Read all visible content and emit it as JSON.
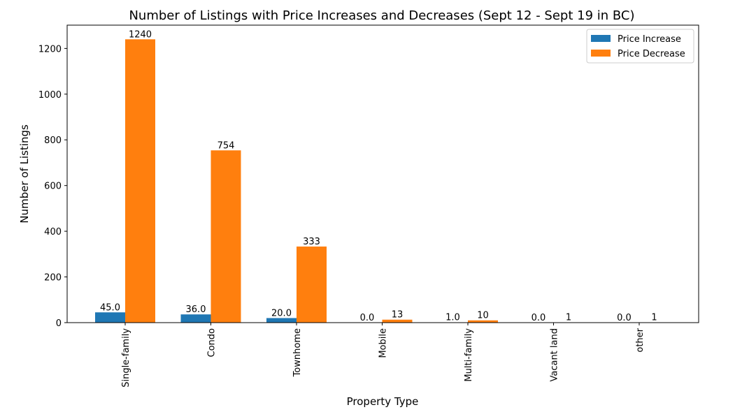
{
  "chart_data": {
    "type": "bar",
    "title": "Number of Listings with Price Increases and Decreases (Sept 12 - Sept 19 in BC)",
    "xlabel": "Property Type",
    "ylabel": "Number of Listings",
    "categories": [
      "Single-family",
      "Condo",
      "Townhome",
      "Mobile",
      "Multi-family",
      "Vacant land",
      "other"
    ],
    "series": [
      {
        "name": "Price Increase",
        "color": "#1f77b4",
        "values": [
          45,
          36,
          20,
          0,
          1,
          0,
          0
        ],
        "labels": [
          "45.0",
          "36.0",
          "20.0",
          "0.0",
          "1.0",
          "0.0",
          "0.0"
        ]
      },
      {
        "name": "Price Decrease",
        "color": "#ff7f0e",
        "values": [
          1240,
          754,
          333,
          13,
          10,
          1,
          1
        ],
        "labels": [
          "1240",
          "754",
          "333",
          "13",
          "10",
          "1",
          "1"
        ]
      }
    ],
    "ylim": [
      0,
      1302
    ],
    "yticks": [
      0,
      200,
      400,
      600,
      800,
      1000,
      1200
    ],
    "grid": false,
    "legend": "top-right"
  }
}
